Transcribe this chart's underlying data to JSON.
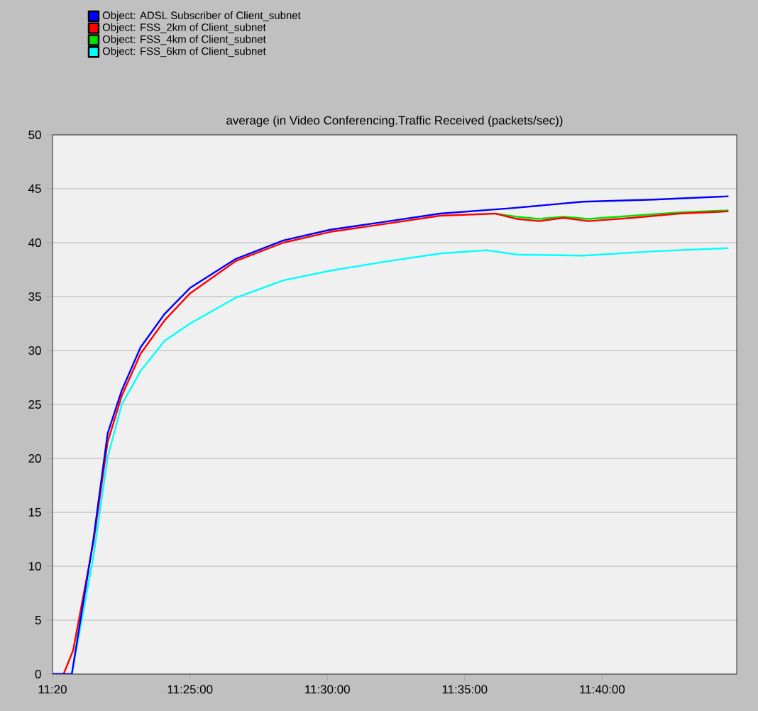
{
  "chart_data": {
    "type": "line",
    "title": "average (in Video Conferencing.Traffic Received (packets/sec))",
    "xlim": [
      11.3333,
      11.7483
    ],
    "ylim": [
      0,
      50
    ],
    "xticks": [
      {
        "value": 11.3333,
        "label": "11:20"
      },
      {
        "value": 11.4167,
        "label": "11:25:00"
      },
      {
        "value": 11.5,
        "label": "11:30:00"
      },
      {
        "value": 11.5833,
        "label": "11:35:00"
      },
      {
        "value": 11.6667,
        "label": "11:40:00"
      }
    ],
    "yticks": [
      0,
      5,
      10,
      15,
      20,
      25,
      30,
      35,
      40,
      45,
      50
    ],
    "grid": "y",
    "legend": "top left",
    "series": [
      {
        "name": "Object: ADSL Subscriber of Client_subnet",
        "color": "#0000ff",
        "x": [
          11.3333,
          11.345,
          11.3582,
          11.3667,
          11.3753,
          11.3867,
          11.4013,
          11.4167,
          11.4445,
          11.4733,
          11.5017,
          11.5333,
          11.5683,
          11.6117,
          11.655,
          11.6983,
          11.7433
        ],
        "values": [
          0,
          0,
          12.6,
          22.3,
          26.3,
          30.3,
          33.4,
          35.8,
          38.5,
          40.2,
          41.2,
          41.9,
          42.7,
          43.2,
          43.8,
          44.0,
          44.3
        ]
      },
      {
        "name": "Object: FSS_2km of Client_subnet",
        "color": "#ff0000",
        "x": [
          11.3333,
          11.34,
          11.3458,
          11.3582,
          11.3667,
          11.3753,
          11.3867,
          11.4013,
          11.4167,
          11.4445,
          11.4733,
          11.5017,
          11.5333,
          11.5683,
          11.6017,
          11.615,
          11.6283,
          11.6433,
          11.6583,
          11.685,
          11.7133,
          11.7433
        ],
        "values": [
          0,
          0,
          2.2,
          12.3,
          21.5,
          25.8,
          29.7,
          32.8,
          35.3,
          38.3,
          40.0,
          41.0,
          41.7,
          42.5,
          42.7,
          42.2,
          42.0,
          42.3,
          42.0,
          42.3,
          42.7,
          42.9
        ]
      },
      {
        "name": "Object: FSS_4km of Client_subnet",
        "color": "#00e000",
        "x": [
          11.6017,
          11.615,
          11.6283,
          11.6433,
          11.6583,
          11.685,
          11.7133,
          11.7433
        ],
        "values": [
          42.7,
          42.4,
          42.2,
          42.4,
          42.2,
          42.5,
          42.8,
          43.0
        ]
      },
      {
        "name": "Object: FSS_6km of Client_subnet",
        "color": "#00ffff",
        "x": [
          11.3333,
          11.345,
          11.3582,
          11.3667,
          11.3753,
          11.3867,
          11.4013,
          11.4167,
          11.4445,
          11.4733,
          11.5017,
          11.5333,
          11.5683,
          11.5967,
          11.615,
          11.655,
          11.6983,
          11.7433
        ],
        "values": [
          0,
          0,
          11.0,
          20.1,
          25.0,
          28.1,
          30.9,
          32.5,
          34.9,
          36.5,
          37.4,
          38.2,
          39.0,
          39.3,
          38.9,
          38.8,
          39.2,
          39.5
        ]
      }
    ]
  }
}
